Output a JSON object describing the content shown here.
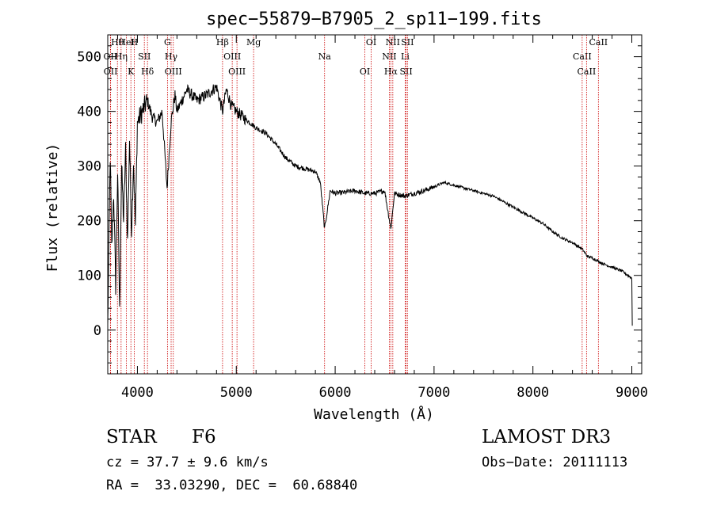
{
  "chart_data": {
    "type": "line",
    "title": "spec−55879−B7905_2_sp11−199.fits",
    "xlabel": "Wavelength (Å)",
    "ylabel": "Flux (relative)",
    "xlim": [
      3700,
      9100
    ],
    "ylim": [
      -80,
      540
    ],
    "x_ticks": [
      4000,
      5000,
      6000,
      7000,
      8000,
      9000
    ],
    "x_tick_labels": [
      "4000",
      "5000",
      "6000",
      "7000",
      "8000",
      "9000"
    ],
    "y_ticks": [
      0,
      100,
      200,
      300,
      400,
      500
    ],
    "y_tick_labels": [
      "0",
      "100",
      "200",
      "300",
      "400",
      "500"
    ],
    "series": [
      {
        "name": "flux",
        "color": "#000000",
        "x": [
          3700,
          3725,
          3740,
          3760,
          3780,
          3800,
          3820,
          3840,
          3860,
          3880,
          3900,
          3920,
          3940,
          3960,
          3980,
          4000,
          4050,
          4100,
          4150,
          4200,
          4250,
          4300,
          4340,
          4380,
          4400,
          4450,
          4500,
          4600,
          4700,
          4800,
          4861,
          4900,
          4950,
          5000,
          5100,
          5200,
          5300,
          5400,
          5500,
          5600,
          5700,
          5800,
          5850,
          5893,
          5950,
          6000,
          6100,
          6200,
          6300,
          6400,
          6500,
          6563,
          6600,
          6700,
          6800,
          6900,
          7000,
          7100,
          7200,
          7300,
          7400,
          7500,
          7600,
          7700,
          7800,
          7900,
          8000,
          8100,
          8200,
          8300,
          8400,
          8500,
          8550,
          8600,
          8700,
          8800,
          8900,
          9000,
          9005
        ],
        "values": [
          5,
          320,
          150,
          250,
          80,
          290,
          30,
          300,
          200,
          330,
          160,
          350,
          180,
          310,
          190,
          380,
          400,
          420,
          390,
          380,
          400,
          260,
          380,
          430,
          400,
          420,
          440,
          420,
          430,
          445,
          400,
          440,
          410,
          400,
          385,
          370,
          360,
          340,
          315,
          300,
          295,
          290,
          270,
          185,
          255,
          250,
          252,
          255,
          250,
          250,
          255,
          185,
          250,
          245,
          250,
          255,
          262,
          270,
          265,
          260,
          255,
          250,
          245,
          235,
          225,
          215,
          205,
          195,
          180,
          168,
          160,
          148,
          135,
          132,
          122,
          115,
          108,
          95,
          8
        ]
      }
    ],
    "lines": [
      {
        "name": "Hθ",
        "x": 3798
      },
      {
        "name": "OII",
        "x": 3727
      },
      {
        "name": "OII",
        "x": 3729
      },
      {
        "name": "HeI",
        "x": 3889
      },
      {
        "name": "Hη",
        "x": 3835
      },
      {
        "name": "K",
        "x": 3934
      },
      {
        "name": "H",
        "x": 3968
      },
      {
        "name": "SII",
        "x": 4070
      },
      {
        "name": "Hδ",
        "x": 4102
      },
      {
        "name": "G",
        "x": 4304
      },
      {
        "name": "Hγ",
        "x": 4341
      },
      {
        "name": "OIII",
        "x": 4363
      },
      {
        "name": "Hβ",
        "x": 4861
      },
      {
        "name": "OIII",
        "x": 4959
      },
      {
        "name": "OIII",
        "x": 5007
      },
      {
        "name": "Mg",
        "x": 5175
      },
      {
        "name": "Na",
        "x": 5893
      },
      {
        "name": "OI",
        "x": 6300
      },
      {
        "name": "OI",
        "x": 6364
      },
      {
        "name": "NII",
        "x": 6548
      },
      {
        "name": "Hα",
        "x": 6563
      },
      {
        "name": "NII",
        "x": 6583
      },
      {
        "name": "Li",
        "x": 6708
      },
      {
        "name": "SII",
        "x": 6717
      },
      {
        "name": "SII",
        "x": 6731
      },
      {
        "name": "CaII",
        "x": 8498
      },
      {
        "name": "CaII",
        "x": 8542
      },
      {
        "name": "CaII",
        "x": 8662
      }
    ],
    "line_color": "#cc0000",
    "grid": false
  },
  "info": {
    "object_class": "STAR",
    "subclass": "F6",
    "survey": "LAMOST DR3",
    "cz": "cz = 37.7 ± 9.6 km/s",
    "obs_date": "Obs−Date: 20111113",
    "coords": "RA =  33.03290, DEC =  60.68840"
  }
}
